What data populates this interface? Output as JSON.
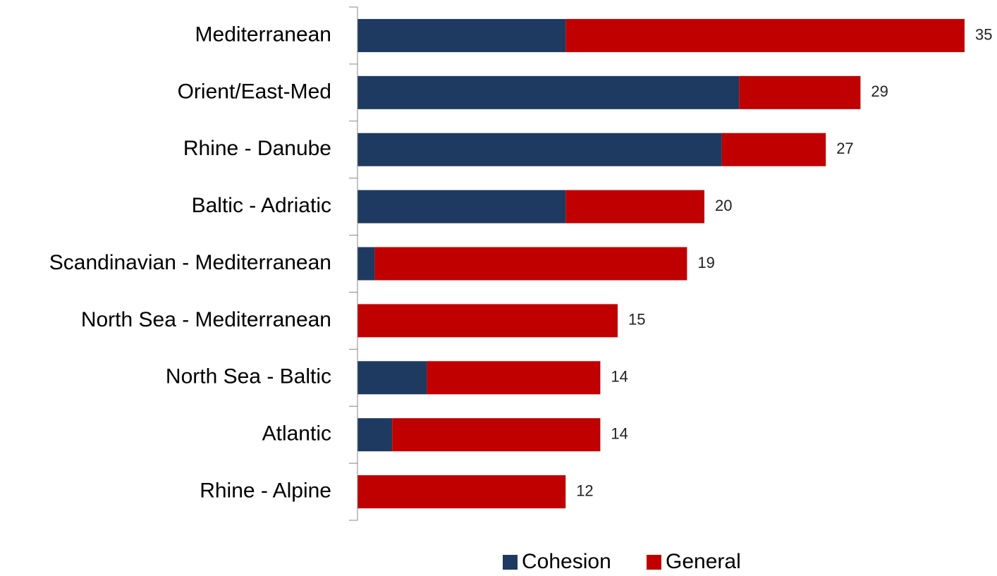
{
  "chart_data": {
    "type": "stacked-barh",
    "categories": [
      "Mediterranean",
      "Orient/East-Med",
      "Rhine - Danube",
      "Baltic - Adriatic",
      "Scandinavian - Mediterranean",
      "North Sea - Mediterranean",
      "North Sea - Baltic",
      "Atlantic",
      "Rhine - Alpine"
    ],
    "series": [
      {
        "name": "Cohesion",
        "color": "#1f3a60",
        "values": [
          12,
          22,
          21,
          12,
          1,
          0,
          4,
          2,
          0
        ]
      },
      {
        "name": "General",
        "color": "#c00000",
        "values": [
          23,
          7,
          6,
          8,
          18,
          15,
          10,
          12,
          12
        ]
      }
    ],
    "totals": [
      35,
      29,
      27,
      20,
      19,
      15,
      14,
      14,
      12
    ],
    "xlim": [
      0,
      35
    ],
    "legend": "bottom"
  }
}
